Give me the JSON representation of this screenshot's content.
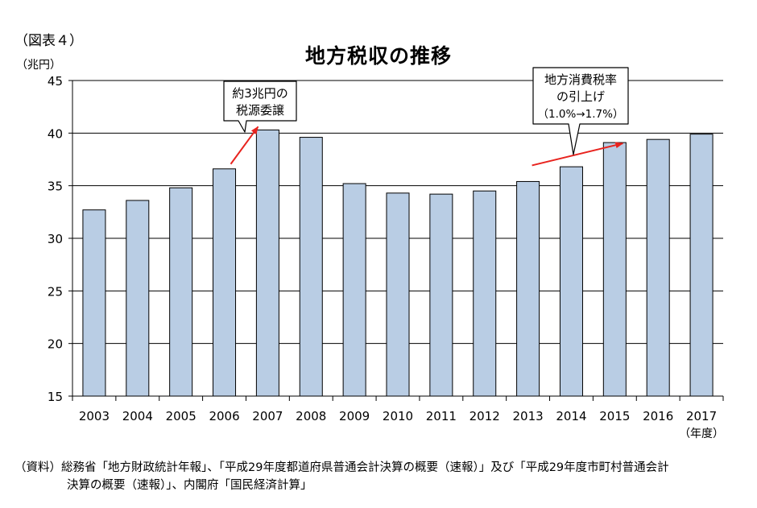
{
  "figure_label": "（図表４）",
  "unit_label": "（兆円）",
  "x_unit_label": "（年度）",
  "source": {
    "line1": "（資料）総務省「地方財政統計年報」、「平成29年度都道府県普通会計決算の概要（速報）」及び「平成29年度市町村普通会計",
    "line2": "決算の概要（速報）」、内閣府「国民経済計算」"
  },
  "colors": {
    "bar_fill": "#B9CDE4",
    "bar_stroke": "#000000",
    "arrow": "#E8231E",
    "grid": "#000000"
  },
  "chart_data": {
    "type": "bar",
    "title": "地方税収の推移",
    "xlabel": "",
    "ylabel": "",
    "categories": [
      "2003",
      "2004",
      "2005",
      "2006",
      "2007",
      "2008",
      "2009",
      "2010",
      "2011",
      "2012",
      "2013",
      "2014",
      "2015",
      "2016",
      "2017"
    ],
    "values": [
      32.7,
      33.6,
      34.8,
      36.6,
      40.3,
      39.6,
      35.2,
      34.3,
      34.2,
      34.5,
      35.4,
      36.8,
      39.1,
      39.4,
      39.9
    ],
    "ylim": [
      15,
      45
    ],
    "yticks": [
      15,
      20,
      25,
      30,
      35,
      40,
      45
    ],
    "grid": true,
    "legend": "none",
    "annotations": [
      {
        "id": "zeigen",
        "lines": [
          "約3兆円の",
          "税源委譲"
        ],
        "arrow_from": "2006",
        "arrow_to": "2007"
      },
      {
        "id": "shohizei",
        "lines": [
          "地方消費税率",
          "の引上げ",
          "（1.0%→1.7%）"
        ],
        "arrow_from": "2013",
        "arrow_to": "2015"
      }
    ]
  }
}
